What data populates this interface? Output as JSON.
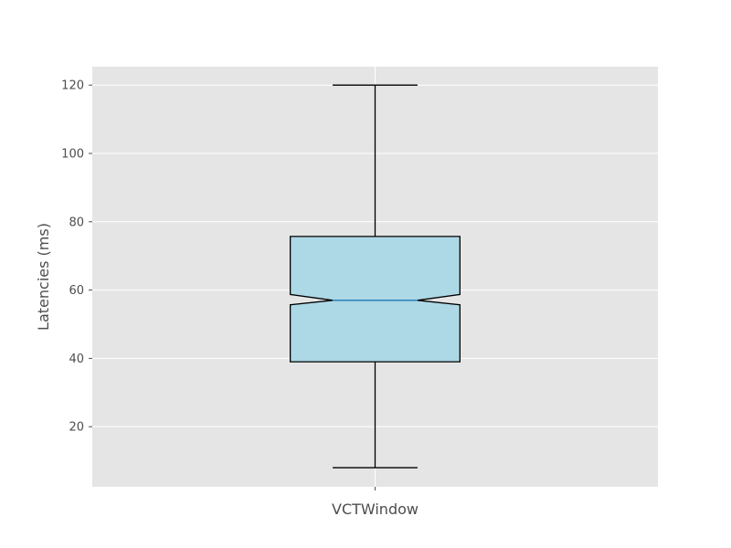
{
  "chart_data": {
    "type": "boxplot",
    "title": "",
    "xlabel": "",
    "ylabel": "Latencies (ms)",
    "ylim": [
      2.4,
      125.4
    ],
    "yticks": [
      20,
      40,
      60,
      80,
      100,
      120
    ],
    "grid": true,
    "notched": true,
    "categories": [
      "VCTWindow"
    ],
    "boxes": [
      {
        "category": "VCTWindow",
        "whisker_low": 8,
        "q1": 39,
        "median": 57,
        "q3": 75.7,
        "whisker_high": 120,
        "notch_low": 55.7,
        "notch_high": 58.7
      }
    ],
    "colors": {
      "plot_background": "#e5e5e5",
      "grid": "#ffffff",
      "box_fill": "#add8e6",
      "box_edge": "#000000",
      "median_line": "#1f77b4",
      "whisker": "#000000"
    }
  }
}
